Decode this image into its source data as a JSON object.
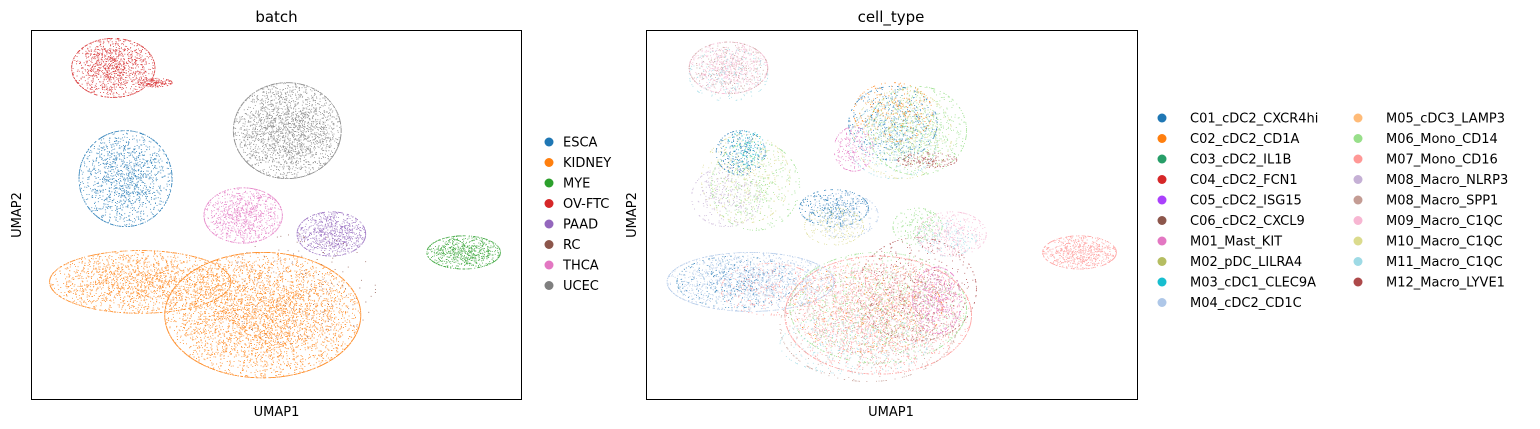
{
  "chart_data": [
    {
      "type": "scatter",
      "title": "batch",
      "xlabel": "UMAP1",
      "ylabel": "UMAP2",
      "grid": false,
      "ticks": "none",
      "legend_position": "right",
      "legend": [
        {
          "label": "ESCA",
          "color": "#1f77b4"
        },
        {
          "label": "KIDNEY",
          "color": "#ff7f0e"
        },
        {
          "label": "MYE",
          "color": "#2ca02c"
        },
        {
          "label": "OV-FTC",
          "color": "#d62728"
        },
        {
          "label": "PAAD",
          "color": "#9467bd"
        },
        {
          "label": "RC",
          "color": "#8c564b"
        },
        {
          "label": "THCA",
          "color": "#e377c2"
        },
        {
          "label": "UCEC",
          "color": "#7f7f7f"
        }
      ],
      "clusters": [
        {
          "series": "OV-FTC",
          "cx": 0.165,
          "cy": 0.9,
          "rx": 0.085,
          "ry": 0.08,
          "n": 1300
        },
        {
          "series": "OV-FTC",
          "cx": 0.25,
          "cy": 0.86,
          "rx": 0.035,
          "ry": 0.012,
          "n": 160
        },
        {
          "series": "UCEC",
          "cx": 0.52,
          "cy": 0.73,
          "rx": 0.11,
          "ry": 0.13,
          "n": 2600
        },
        {
          "series": "ESCA",
          "cx": 0.19,
          "cy": 0.6,
          "rx": 0.095,
          "ry": 0.13,
          "n": 1600
        },
        {
          "series": "THCA",
          "cx": 0.43,
          "cy": 0.5,
          "rx": 0.08,
          "ry": 0.075,
          "n": 1100
        },
        {
          "series": "PAAD",
          "cx": 0.61,
          "cy": 0.45,
          "rx": 0.07,
          "ry": 0.06,
          "n": 900
        },
        {
          "series": "MYE",
          "cx": 0.88,
          "cy": 0.4,
          "rx": 0.075,
          "ry": 0.045,
          "n": 800
        },
        {
          "series": "KIDNEY",
          "cx": 0.22,
          "cy": 0.32,
          "rx": 0.185,
          "ry": 0.085,
          "n": 2200
        },
        {
          "series": "KIDNEY",
          "cx": 0.47,
          "cy": 0.23,
          "rx": 0.2,
          "ry": 0.17,
          "n": 5000
        },
        {
          "series": "RC",
          "cx": 0.55,
          "cy": 0.3,
          "rx": 0.15,
          "ry": 0.15,
          "n": 150
        }
      ]
    },
    {
      "type": "scatter",
      "title": "cell_type",
      "xlabel": "UMAP1",
      "ylabel": "UMAP2",
      "grid": false,
      "ticks": "none",
      "legend_position": "right",
      "legend_columns": 2,
      "legend": [
        {
          "label": "C01_cDC2_CXCR4hi",
          "color": "#1f77b4"
        },
        {
          "label": "C02_cDC2_CD1A",
          "color": "#ff7f0e"
        },
        {
          "label": "C03_cDC2_IL1B",
          "color": "#279e68"
        },
        {
          "label": "C04_cDC2_FCN1",
          "color": "#d62728"
        },
        {
          "label": "C05_cDC2_ISG15",
          "color": "#aa40fc"
        },
        {
          "label": "C06_cDC2_CXCL9",
          "color": "#8c564b"
        },
        {
          "label": "M01_Mast_KIT",
          "color": "#e377c2"
        },
        {
          "label": "M02_pDC_LILRA4",
          "color": "#b5bd61"
        },
        {
          "label": "M03_cDC1_CLEC9A",
          "color": "#17becf"
        },
        {
          "label": "M04_cDC2_CD1C",
          "color": "#aec7e8"
        },
        {
          "label": "M05_cDC3_LAMP3",
          "color": "#ffbb78"
        },
        {
          "label": "M06_Mono_CD14",
          "color": "#98df8a"
        },
        {
          "label": "M07_Mono_CD16",
          "color": "#ff9896"
        },
        {
          "label": "M08_Macro_NLRP3",
          "color": "#c5b0d5"
        },
        {
          "label": "M08_Macro_SPP1",
          "color": "#c49c94"
        },
        {
          "label": "M09_Macro_C1QC",
          "color": "#f7b6d2"
        },
        {
          "label": "M10_Macro_C1QC",
          "color": "#dbdb8d"
        },
        {
          "label": "M11_Macro_C1QC",
          "color": "#9edae5"
        },
        {
          "label": "M12_Macro_LYVE1",
          "color": "#ad494a"
        }
      ],
      "clusters": [
        {
          "series": "M09_Macro_C1QC",
          "cx": 0.165,
          "cy": 0.9,
          "rx": 0.08,
          "ry": 0.07,
          "n": 700
        },
        {
          "series": "M08_Macro_SPP1",
          "cx": 0.165,
          "cy": 0.9,
          "rx": 0.08,
          "ry": 0.07,
          "n": 300
        },
        {
          "series": "M11_Macro_C1QC",
          "cx": 0.165,
          "cy": 0.88,
          "rx": 0.08,
          "ry": 0.07,
          "n": 200
        },
        {
          "series": "M06_Mono_CD14",
          "cx": 0.55,
          "cy": 0.73,
          "rx": 0.1,
          "ry": 0.12,
          "n": 700
        },
        {
          "series": "C01_cDC2_CXCR4hi",
          "cx": 0.5,
          "cy": 0.75,
          "rx": 0.09,
          "ry": 0.1,
          "n": 500
        },
        {
          "series": "M11_Macro_C1QC",
          "cx": 0.5,
          "cy": 0.7,
          "rx": 0.09,
          "ry": 0.1,
          "n": 400
        },
        {
          "series": "M10_Macro_C1QC",
          "cx": 0.52,
          "cy": 0.72,
          "rx": 0.1,
          "ry": 0.12,
          "n": 400
        },
        {
          "series": "C02_cDC2_CD1A",
          "cx": 0.5,
          "cy": 0.78,
          "rx": 0.08,
          "ry": 0.08,
          "n": 250
        },
        {
          "series": "M01_Mast_KIT",
          "cx": 0.42,
          "cy": 0.68,
          "rx": 0.04,
          "ry": 0.06,
          "n": 220
        },
        {
          "series": "M12_Macro_LYVE1",
          "cx": 0.57,
          "cy": 0.65,
          "rx": 0.06,
          "ry": 0.02,
          "n": 150
        },
        {
          "series": "M10_Macro_C1QC",
          "cx": 0.2,
          "cy": 0.6,
          "rx": 0.09,
          "ry": 0.12,
          "n": 400
        },
        {
          "series": "M06_Mono_CD14",
          "cx": 0.22,
          "cy": 0.58,
          "rx": 0.09,
          "ry": 0.12,
          "n": 400
        },
        {
          "series": "M08_Macro_NLRP3",
          "cx": 0.16,
          "cy": 0.55,
          "rx": 0.07,
          "ry": 0.08,
          "n": 300
        },
        {
          "series": "C01_cDC2_CXCR4hi",
          "cx": 0.19,
          "cy": 0.67,
          "rx": 0.05,
          "ry": 0.06,
          "n": 250
        },
        {
          "series": "M03_cDC1_CLEC9A",
          "cx": 0.2,
          "cy": 0.68,
          "rx": 0.04,
          "ry": 0.05,
          "n": 120
        },
        {
          "series": "C01_cDC2_CXCR4hi",
          "cx": 0.38,
          "cy": 0.52,
          "rx": 0.07,
          "ry": 0.05,
          "n": 350
        },
        {
          "series": "M04_cDC2_CD1C",
          "cx": 0.4,
          "cy": 0.5,
          "rx": 0.07,
          "ry": 0.06,
          "n": 300
        },
        {
          "series": "M10_Macro_C1QC",
          "cx": 0.38,
          "cy": 0.47,
          "rx": 0.06,
          "ry": 0.05,
          "n": 200
        },
        {
          "series": "M09_Macro_C1QC",
          "cx": 0.62,
          "cy": 0.45,
          "rx": 0.07,
          "ry": 0.06,
          "n": 400
        },
        {
          "series": "M06_Mono_CD14",
          "cx": 0.55,
          "cy": 0.47,
          "rx": 0.05,
          "ry": 0.05,
          "n": 200
        },
        {
          "series": "M11_Macro_C1QC",
          "cx": 0.61,
          "cy": 0.44,
          "rx": 0.06,
          "ry": 0.05,
          "n": 150
        },
        {
          "series": "M07_Mono_CD16",
          "cx": 0.88,
          "cy": 0.4,
          "rx": 0.075,
          "ry": 0.045,
          "n": 800
        },
        {
          "series": "M04_cDC2_CD1C",
          "cx": 0.21,
          "cy": 0.32,
          "rx": 0.17,
          "ry": 0.08,
          "n": 1700
        },
        {
          "series": "C01_cDC2_CXCR4hi",
          "cx": 0.18,
          "cy": 0.32,
          "rx": 0.12,
          "ry": 0.07,
          "n": 300
        },
        {
          "series": "M07_Mono_CD16",
          "cx": 0.25,
          "cy": 0.3,
          "rx": 0.1,
          "ry": 0.07,
          "n": 250
        },
        {
          "series": "M07_Mono_CD16",
          "cx": 0.47,
          "cy": 0.23,
          "rx": 0.19,
          "ry": 0.16,
          "n": 2200
        },
        {
          "series": "M06_Mono_CD14",
          "cx": 0.47,
          "cy": 0.25,
          "rx": 0.18,
          "ry": 0.15,
          "n": 1000
        },
        {
          "series": "M08_Macro_SPP1",
          "cx": 0.45,
          "cy": 0.2,
          "rx": 0.18,
          "ry": 0.15,
          "n": 700
        },
        {
          "series": "M12_Macro_LYVE1",
          "cx": 0.55,
          "cy": 0.3,
          "rx": 0.12,
          "ry": 0.14,
          "n": 500
        },
        {
          "series": "M09_Macro_C1QC",
          "cx": 0.45,
          "cy": 0.25,
          "rx": 0.15,
          "ry": 0.12,
          "n": 400
        },
        {
          "series": "M01_Mast_KIT",
          "cx": 0.59,
          "cy": 0.27,
          "rx": 0.05,
          "ry": 0.09,
          "n": 500
        },
        {
          "series": "M11_Macro_C1QC",
          "cx": 0.42,
          "cy": 0.15,
          "rx": 0.15,
          "ry": 0.08,
          "n": 300
        },
        {
          "series": "M05_cDC3_LAMP3",
          "cx": 0.45,
          "cy": 0.25,
          "rx": 0.15,
          "ry": 0.12,
          "n": 200
        },
        {
          "series": "C02_cDC2_CD1A",
          "cx": 0.45,
          "cy": 0.25,
          "rx": 0.15,
          "ry": 0.12,
          "n": 150
        }
      ]
    }
  ]
}
